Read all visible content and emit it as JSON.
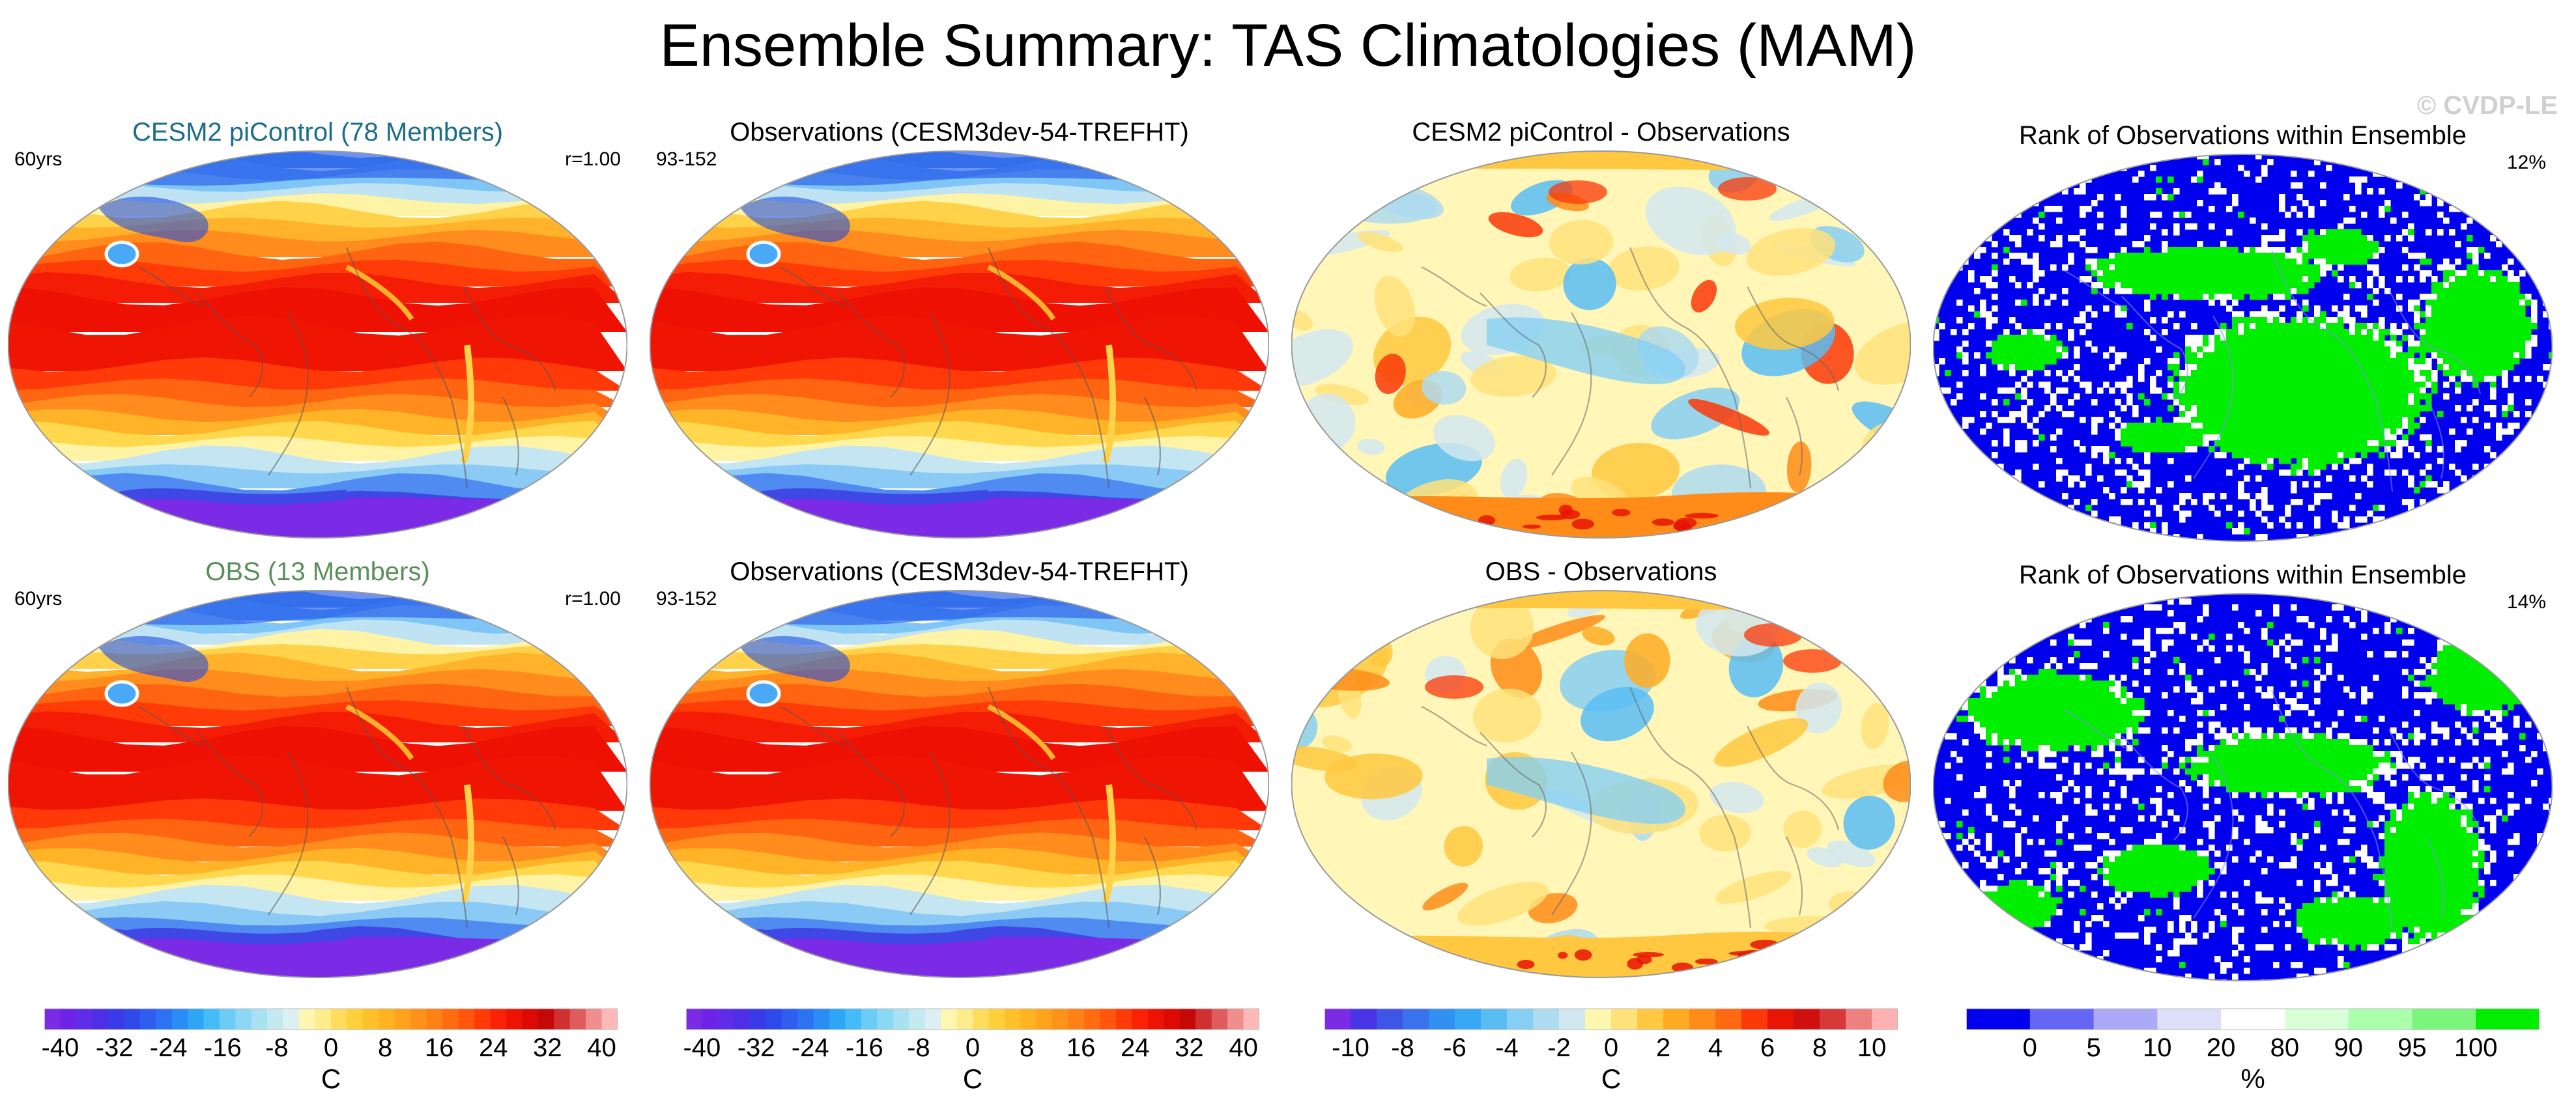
{
  "title": "Ensemble Summary: TAS Climatologies (MAM)",
  "watermark": "© CVDP-LE",
  "panels": [
    {
      "title": "CESM2 piControl (78 Members)",
      "title_color": "#1b6e8a",
      "left": "60yrs",
      "right": "r=1.00",
      "kind": "clim",
      "variant": 0
    },
    {
      "title": "Observations (CESM3dev-54-TREFHT)",
      "title_color": "#000000",
      "left": "93-152",
      "right": "",
      "kind": "clim",
      "variant": 0
    },
    {
      "title": "CESM2 piControl - Observations",
      "title_color": "#000000",
      "left": "",
      "right": "",
      "kind": "diff",
      "variant": 1
    },
    {
      "title": "Rank of Observations within Ensemble",
      "title_color": "#000000",
      "left": "",
      "right": "12%",
      "kind": "rank",
      "variant": 1
    },
    {
      "title": "OBS (13 Members)",
      "title_color": "#5a8f5a",
      "left": "60yrs",
      "right": "r=1.00",
      "kind": "clim",
      "variant": 1
    },
    {
      "title": "Observations (CESM3dev-54-TREFHT)",
      "title_color": "#000000",
      "left": "93-152",
      "right": "",
      "kind": "clim",
      "variant": 1
    },
    {
      "title": "OBS - Observations",
      "title_color": "#000000",
      "left": "",
      "right": "",
      "kind": "diff",
      "variant": 2
    },
    {
      "title": "Rank of Observations within Ensemble",
      "title_color": "#000000",
      "left": "",
      "right": "14%",
      "kind": "rank",
      "variant": 2
    }
  ],
  "colorbars": [
    {
      "unit": "C",
      "ticks": [
        "-40",
        "-32",
        "-24",
        "-16",
        "-8",
        "0",
        "8",
        "16",
        "24",
        "32",
        "40"
      ],
      "colors": [
        "#7b2ae6",
        "#6d24e6",
        "#5f2de8",
        "#4d2fe6",
        "#3a3ae8",
        "#2f4aea",
        "#2e5ef0",
        "#2c73f4",
        "#2a8cf5",
        "#2ea6f6",
        "#45bcf7",
        "#6bcdf6",
        "#8ad8f3",
        "#a8e1f1",
        "#c3e9f1",
        "#dceff2",
        "#fff7b0",
        "#ffec8a",
        "#ffdd5c",
        "#ffcf3c",
        "#ffc12a",
        "#ffb222",
        "#ffa21c",
        "#ff9218",
        "#ff8014",
        "#ff6c10",
        "#ff560c",
        "#ff3c08",
        "#fa2204",
        "#ee1202",
        "#dc0a02",
        "#c40808",
        "#d03030",
        "#e05c5c",
        "#f08e8e",
        "#ffb8b8"
      ]
    },
    {
      "unit": "C",
      "ticks": [
        "-40",
        "-32",
        "-24",
        "-16",
        "-8",
        "0",
        "8",
        "16",
        "24",
        "32",
        "40"
      ],
      "colors": [
        "#7b2ae6",
        "#6d24e6",
        "#5f2de8",
        "#4d2fe6",
        "#3a3ae8",
        "#2f4aea",
        "#2e5ef0",
        "#2c73f4",
        "#2a8cf5",
        "#2ea6f6",
        "#45bcf7",
        "#6bcdf6",
        "#8ad8f3",
        "#a8e1f1",
        "#c3e9f1",
        "#dceff2",
        "#fff7b0",
        "#ffec8a",
        "#ffdd5c",
        "#ffcf3c",
        "#ffc12a",
        "#ffb222",
        "#ffa21c",
        "#ff9218",
        "#ff8014",
        "#ff6c10",
        "#ff560c",
        "#ff3c08",
        "#fa2204",
        "#ee1202",
        "#dc0a02",
        "#c40808",
        "#d03030",
        "#e05c5c",
        "#f08e8e",
        "#ffb8b8"
      ]
    },
    {
      "unit": "C",
      "ticks": [
        "-10",
        "-8",
        "-6",
        "-4",
        "-2",
        "0",
        "2",
        "4",
        "6",
        "8",
        "10"
      ],
      "colors": [
        "#7b2ae6",
        "#4a35e6",
        "#3f55e8",
        "#3a72ee",
        "#3190f2",
        "#36a8f4",
        "#59bdf4",
        "#86cff2",
        "#aedbef",
        "#d2e8f0",
        "#fff6b0",
        "#ffe27a",
        "#ffc840",
        "#ffac22",
        "#ff8c18",
        "#ff6a10",
        "#fa3808",
        "#e81404",
        "#d01010",
        "#d83838",
        "#ee8080",
        "#ffb0b0"
      ]
    },
    {
      "unit": "%",
      "ticks": [
        "0",
        "5",
        "10",
        "20",
        "80",
        "90",
        "95",
        "100"
      ],
      "colors": [
        "#0000ee",
        "#6666f4",
        "#aaaaf6",
        "#dddef8",
        "#ffffff",
        "#d8ffd8",
        "#aaffaa",
        "#7cf57c",
        "#00ee00"
      ],
      "edges": [
        -0.05,
        0,
        5,
        10,
        20,
        80,
        90,
        95,
        100,
        105
      ]
    }
  ]
}
